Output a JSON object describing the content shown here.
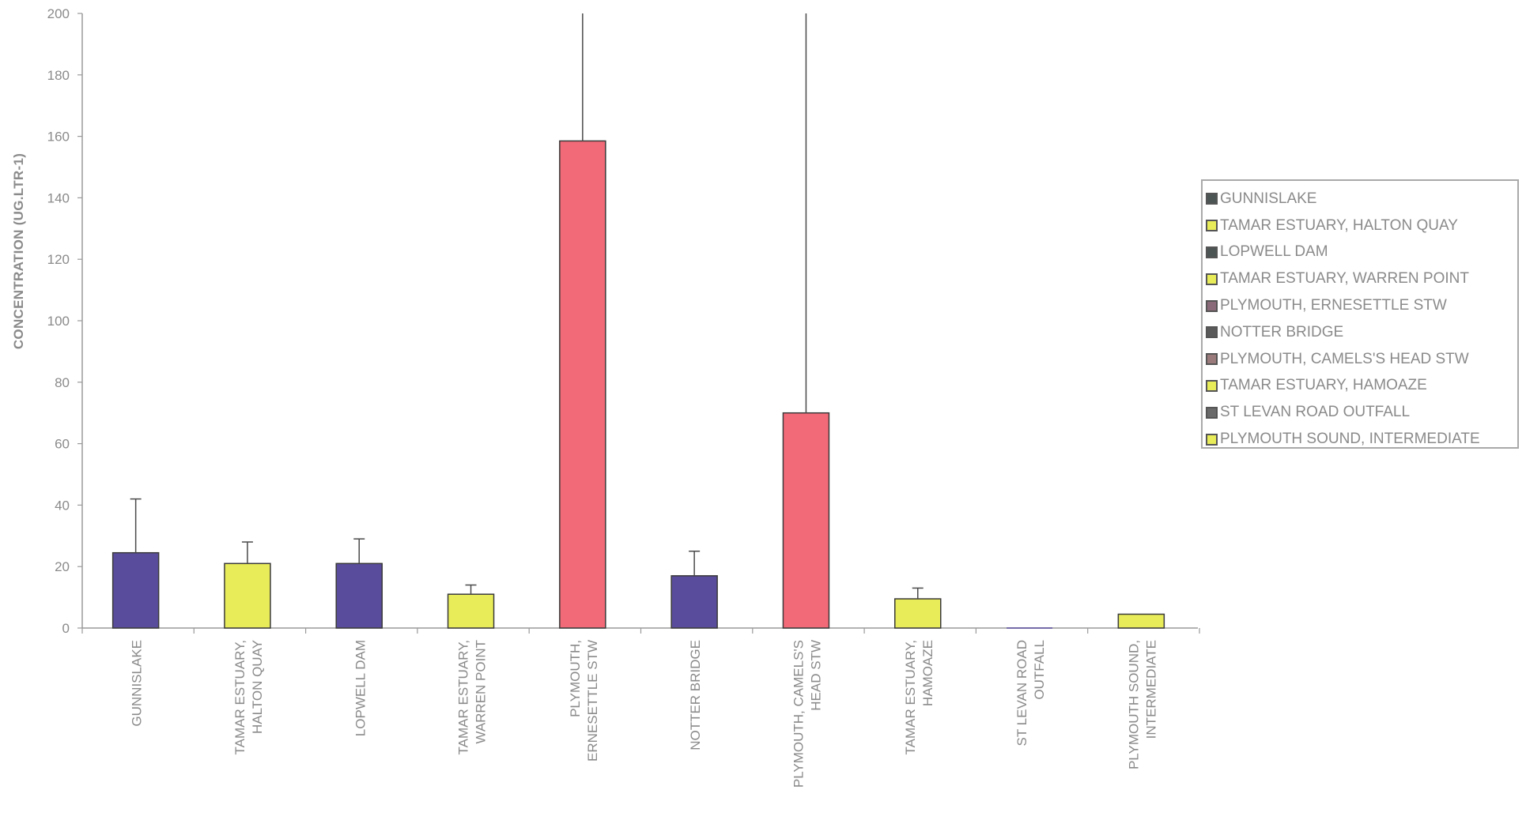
{
  "chart_data": {
    "type": "bar",
    "title": "",
    "xlabel": "",
    "ylabel": "CONCENTRATION (UG.LTR-1)",
    "ylim": [
      0,
      200
    ],
    "yticks": [
      0,
      20,
      40,
      60,
      80,
      100,
      120,
      140,
      160,
      180,
      200
    ],
    "grid": false,
    "legend_position": "right",
    "categories": [
      [
        "GUNNISLAKE"
      ],
      [
        "TAMAR ESTUARY,",
        "HALTON QUAY"
      ],
      [
        "LOPWELL DAM"
      ],
      [
        "TAMAR ESTUARY,",
        "WARREN POINT"
      ],
      [
        "PLYMOUTH,",
        "ERNESETTLE STW"
      ],
      [
        "NOTTER BRIDGE"
      ],
      [
        "PLYMOUTH, CAMELS'S",
        "HEAD STW"
      ],
      [
        "TAMAR ESTUARY,",
        "HAMOAZE"
      ],
      [
        "ST LEVAN ROAD",
        "OUTFALL"
      ],
      [
        "PLYMOUTH SOUND,",
        "INTERMEDIATE"
      ]
    ],
    "values": [
      24.5,
      21,
      21,
      11,
      158.5,
      17,
      70,
      9.5,
      0,
      4.5
    ],
    "error_upper": [
      42,
      28,
      29,
      14,
      200,
      25,
      200,
      13,
      null,
      null
    ],
    "bar_colors": [
      "#5a4c9c",
      "#e8ec58",
      "#5a4c9c",
      "#e8ec58",
      "#f26a78",
      "#5a4c9c",
      "#f26a78",
      "#e8ec58",
      "#5a4c9c",
      "#e8ec58"
    ],
    "legend": [
      {
        "label": "GUNNISLAKE",
        "color": "#4d5454"
      },
      {
        "label": "TAMAR ESTUARY, HALTON QUAY",
        "color": "#e8ec58"
      },
      {
        "label": "LOPWELL DAM",
        "color": "#4d5454"
      },
      {
        "label": "TAMAR ESTUARY, WARREN POINT",
        "color": "#e8ec58"
      },
      {
        "label": "PLYMOUTH, ERNESETTLE STW",
        "color": "#8a6a78"
      },
      {
        "label": "NOTTER BRIDGE",
        "color": "#5a5a5a"
      },
      {
        "label": "PLYMOUTH, CAMELS'S HEAD STW",
        "color": "#9a7a7a"
      },
      {
        "label": "TAMAR ESTUARY, HAMOAZE",
        "color": "#e8ec58"
      },
      {
        "label": "ST LEVAN ROAD OUTFALL",
        "color": "#6a6a6a"
      },
      {
        "label": "PLYMOUTH SOUND, INTERMEDIATE",
        "color": "#e8ec58"
      }
    ]
  }
}
